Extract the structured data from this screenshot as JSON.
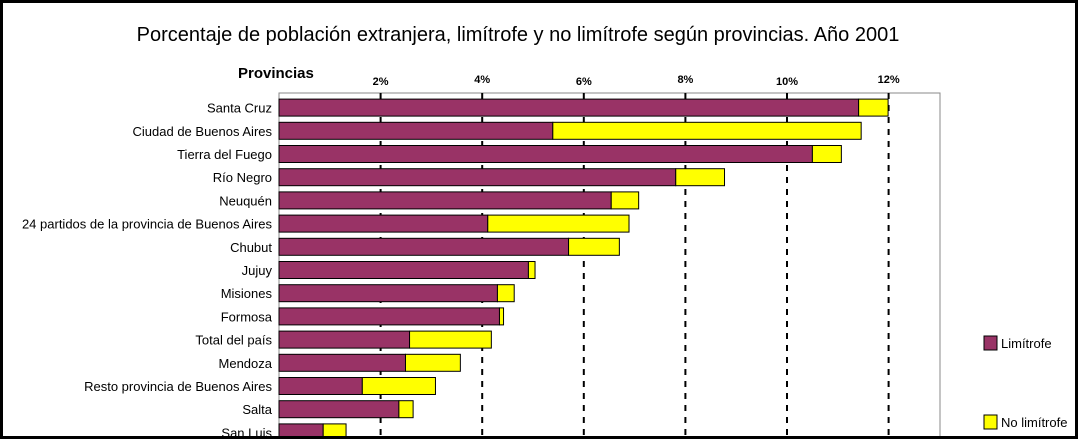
{
  "chart_data": {
    "type": "bar",
    "orientation": "horizontal",
    "stacked": true,
    "title": "Porcentaje de población extranjera, limítrofe y no limítrofe según provincias. Año 2001",
    "ylabel": "Provincias",
    "xlabel": "",
    "xlim": [
      0,
      13
    ],
    "xticks": [
      2,
      4,
      6,
      8,
      10,
      12
    ],
    "xtick_labels": [
      "2%",
      "4%",
      "6%",
      "8%",
      "10%",
      "12%"
    ],
    "grid": "vertical dashed",
    "legend_position": "right",
    "categories": [
      "Santa Cruz",
      "Ciudad de Buenos Aires",
      "Tierra del Fuego",
      "Río Negro",
      "Neuquén",
      "24 partidos de la provincia de Buenos Aires",
      "Chubut",
      "Jujuy",
      "Misiones",
      "Formosa",
      "Total del país",
      "Mendoza",
      "Resto provincia de Buenos Aires",
      "Salta",
      "San Luis"
    ],
    "series": [
      {
        "name": "Limítrofe",
        "color": "#993366",
        "values": [
          11.41,
          5.39,
          10.5,
          7.81,
          6.54,
          4.11,
          5.7,
          4.91,
          4.3,
          4.34,
          2.57,
          2.49,
          1.64,
          2.36,
          0.87
        ]
      },
      {
        "name": "No limítrofe",
        "color": "#FFFF00",
        "values": [
          0.58,
          6.07,
          0.57,
          0.96,
          0.54,
          2.78,
          1.0,
          0.13,
          0.33,
          0.08,
          1.61,
          1.08,
          1.44,
          0.28,
          0.45
        ]
      }
    ]
  }
}
